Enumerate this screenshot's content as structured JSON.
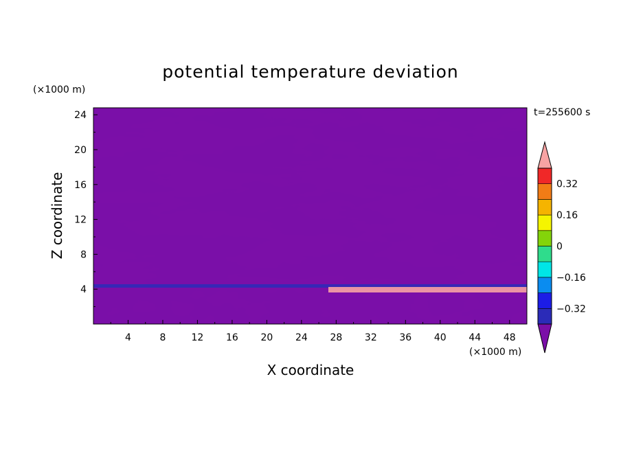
{
  "chart_data": {
    "type": "heatmap",
    "title": "potential temperature deviation",
    "xlabel": "X coordinate",
    "ylabel": "Z coordinate",
    "x_unit": "(×1000 m)",
    "y_unit": "(×1000 m)",
    "time_label": "t=255600 s",
    "xlim": [
      0,
      50
    ],
    "ylim": [
      0,
      24.8
    ],
    "x_ticks": [
      4,
      8,
      12,
      16,
      20,
      24,
      28,
      32,
      36,
      40,
      44,
      48
    ],
    "x_tick_labels": [
      "4",
      "8",
      "12",
      "16",
      "20",
      "24",
      "28",
      "32",
      "36",
      "40",
      "44",
      "48"
    ],
    "y_ticks": [
      4,
      8,
      12,
      16,
      20,
      24
    ],
    "y_tick_labels": [
      "4",
      "8",
      "12",
      "16",
      "20",
      "24"
    ],
    "colorbar": {
      "levels": [
        -0.4,
        -0.32,
        -0.24,
        -0.16,
        -0.08,
        0,
        0.08,
        0.16,
        0.24,
        0.32,
        0.4
      ],
      "labels": [
        "0.32",
        "0.16",
        "0",
        "−0.16",
        "−0.32"
      ],
      "label_values": [
        0.32,
        0.16,
        0,
        -0.16,
        -0.32
      ],
      "colors": [
        "#7b0fa8",
        "#2b2bb8",
        "#1c1ce6",
        "#0a8cf0",
        "#00e6e6",
        "#2fdc8c",
        "#84d40a",
        "#f5f500",
        "#f5b400",
        "#f27c16",
        "#f02828",
        "#f7a3a3"
      ],
      "extend": "both"
    }
  }
}
